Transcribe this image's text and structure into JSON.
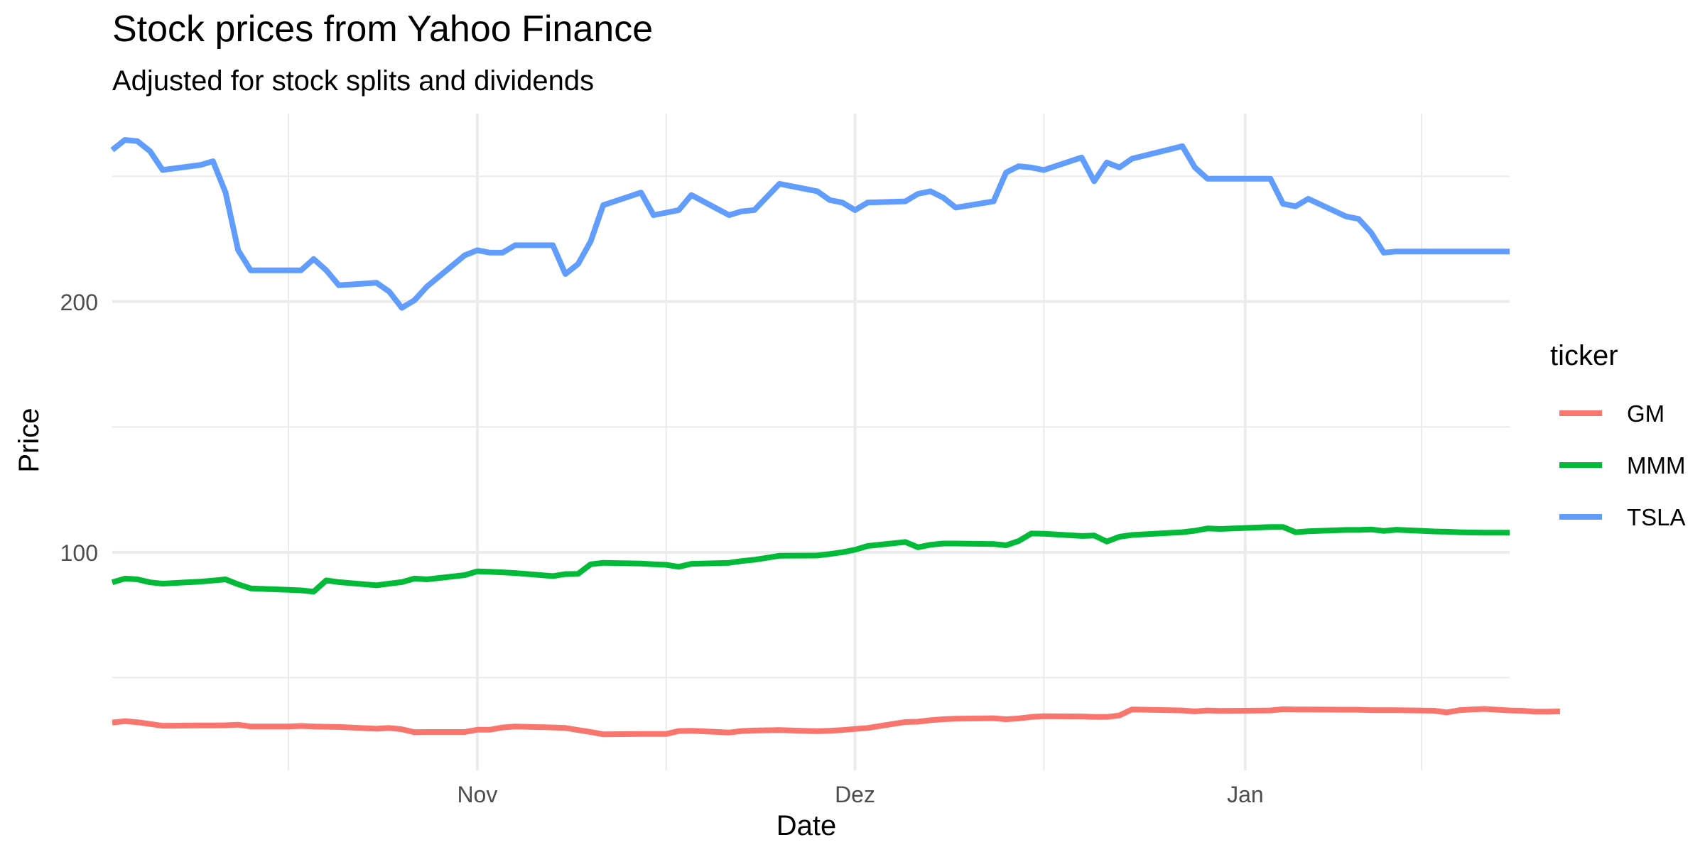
{
  "chart_data": {
    "type": "line",
    "title": "Stock prices from Yahoo Finance",
    "subtitle": "Adjusted for stock splits and dividends",
    "xlabel": "Date",
    "ylabel": "Price",
    "x_ticks": [
      {
        "date": "2022-11-01",
        "label": "Nov"
      },
      {
        "date": "2022-12-01",
        "label": "Dez"
      },
      {
        "date": "2023-01-01",
        "label": "Jan"
      }
    ],
    "y_ticks": [
      100,
      200
    ],
    "xlim": [
      "2022-10-03",
      "2023-01-22"
    ],
    "ylim": [
      13,
      275
    ],
    "grid": true,
    "legend": {
      "title": "ticker",
      "position": "right"
    },
    "series": [
      {
        "name": "GM",
        "color": "#F8766D",
        "points": [
          [
            "2022-10-03",
            32.1
          ],
          [
            "2022-10-04",
            32.6
          ],
          [
            "2022-10-05",
            32.2
          ],
          [
            "2022-10-06",
            31.5
          ],
          [
            "2022-10-07",
            30.8
          ],
          [
            "2022-10-10",
            30.9
          ],
          [
            "2022-10-11",
            30.9
          ],
          [
            "2022-10-12",
            31.0
          ],
          [
            "2022-10-13",
            31.2
          ],
          [
            "2022-10-14",
            30.5
          ],
          [
            "2022-10-17",
            30.5
          ],
          [
            "2022-10-18",
            30.7
          ],
          [
            "2022-10-19",
            30.5
          ],
          [
            "2022-10-20",
            30.4
          ],
          [
            "2022-10-21",
            30.3
          ],
          [
            "2022-10-24",
            29.6
          ],
          [
            "2022-10-25",
            29.9
          ],
          [
            "2022-10-26",
            29.4
          ],
          [
            "2022-10-27",
            28.2
          ],
          [
            "2022-10-28",
            28.3
          ],
          [
            "2022-10-31",
            28.3
          ],
          [
            "2022-11-01",
            29.2
          ],
          [
            "2022-11-02",
            29.2
          ],
          [
            "2022-11-03",
            30.1
          ],
          [
            "2022-11-04",
            30.5
          ],
          [
            "2022-11-07",
            30.1
          ],
          [
            "2022-11-08",
            29.9
          ],
          [
            "2022-11-09",
            29.1
          ],
          [
            "2022-11-10",
            28.3
          ],
          [
            "2022-11-11",
            27.4
          ],
          [
            "2022-11-14",
            27.5
          ],
          [
            "2022-11-15",
            27.5
          ],
          [
            "2022-11-16",
            27.5
          ],
          [
            "2022-11-17",
            28.7
          ],
          [
            "2022-11-18",
            28.8
          ],
          [
            "2022-11-21",
            28.1
          ],
          [
            "2022-11-22",
            28.7
          ],
          [
            "2022-11-23",
            28.9
          ],
          [
            "2022-11-25",
            29.1
          ],
          [
            "2022-11-28",
            28.6
          ],
          [
            "2022-11-29",
            28.8
          ],
          [
            "2022-11-30",
            29.1
          ],
          [
            "2022-12-01",
            29.5
          ],
          [
            "2022-12-02",
            29.9
          ],
          [
            "2022-12-05",
            32.3
          ],
          [
            "2022-12-06",
            32.4
          ],
          [
            "2022-12-07",
            33.0
          ],
          [
            "2022-12-08",
            33.4
          ],
          [
            "2022-12-09",
            33.6
          ],
          [
            "2022-12-12",
            33.8
          ],
          [
            "2022-12-13",
            33.4
          ],
          [
            "2022-12-14",
            33.7
          ],
          [
            "2022-12-15",
            34.3
          ],
          [
            "2022-12-16",
            34.6
          ],
          [
            "2022-12-19",
            34.5
          ],
          [
            "2022-12-20",
            34.3
          ],
          [
            "2022-12-21",
            34.3
          ],
          [
            "2022-12-22",
            34.9
          ],
          [
            "2022-12-23",
            37.3
          ],
          [
            "2022-12-27",
            36.9
          ],
          [
            "2022-12-28",
            36.5
          ],
          [
            "2022-12-29",
            36.9
          ],
          [
            "2022-12-30",
            36.7
          ],
          [
            "2023-01-03",
            36.9
          ],
          [
            "2023-01-04",
            37.4
          ],
          [
            "2023-01-05",
            37.3
          ],
          [
            "2023-01-06",
            37.3
          ],
          [
            "2023-01-09",
            37.2
          ],
          [
            "2023-01-10",
            37.2
          ],
          [
            "2023-01-11",
            37.0
          ],
          [
            "2023-01-12",
            37.0
          ],
          [
            "2023-01-13",
            37.0
          ],
          [
            "2023-01-16",
            36.8
          ],
          [
            "2023-01-17",
            36.1
          ],
          [
            "2023-01-18",
            37.0
          ],
          [
            "2023-01-19",
            37.3
          ],
          [
            "2023-01-20",
            37.5
          ],
          [
            "2023-01-21",
            37.2
          ],
          [
            "2023-01-22",
            36.9
          ],
          [
            "2023-01-23",
            36.8
          ],
          [
            "2023-01-24",
            36.4
          ],
          [
            "2023-01-25",
            36.4
          ],
          [
            "2023-01-26",
            36.5
          ]
        ]
      },
      {
        "name": "MMM",
        "color": "#00BA38",
        "points": [
          [
            "2022-10-03",
            88.0
          ],
          [
            "2022-10-04",
            89.5
          ],
          [
            "2022-10-05",
            89.2
          ],
          [
            "2022-10-06",
            88.0
          ],
          [
            "2022-10-07",
            87.5
          ],
          [
            "2022-10-10",
            88.3
          ],
          [
            "2022-10-11",
            88.7
          ],
          [
            "2022-10-12",
            89.2
          ],
          [
            "2022-10-13",
            87.2
          ],
          [
            "2022-10-14",
            85.6
          ],
          [
            "2022-10-17",
            85.0
          ],
          [
            "2022-10-18",
            84.8
          ],
          [
            "2022-10-19",
            84.3
          ],
          [
            "2022-10-20",
            88.8
          ],
          [
            "2022-10-21",
            88.1
          ],
          [
            "2022-10-24",
            86.8
          ],
          [
            "2022-10-25",
            87.5
          ],
          [
            "2022-10-26",
            88.1
          ],
          [
            "2022-10-27",
            89.5
          ],
          [
            "2022-10-28",
            89.2
          ],
          [
            "2022-10-31",
            90.9
          ],
          [
            "2022-11-01",
            92.4
          ],
          [
            "2022-11-02",
            92.2
          ],
          [
            "2022-11-03",
            92.0
          ],
          [
            "2022-11-04",
            91.7
          ],
          [
            "2022-11-07",
            90.5
          ],
          [
            "2022-11-08",
            91.3
          ],
          [
            "2022-11-09",
            91.4
          ],
          [
            "2022-11-10",
            95.2
          ],
          [
            "2022-11-11",
            95.8
          ],
          [
            "2022-11-14",
            95.5
          ],
          [
            "2022-11-15",
            95.2
          ],
          [
            "2022-11-16",
            95.0
          ],
          [
            "2022-11-17",
            94.2
          ],
          [
            "2022-11-18",
            95.4
          ],
          [
            "2022-11-21",
            95.8
          ],
          [
            "2022-11-22",
            96.5
          ],
          [
            "2022-11-23",
            97.0
          ],
          [
            "2022-11-25",
            98.6
          ],
          [
            "2022-11-28",
            98.7
          ],
          [
            "2022-11-29",
            99.3
          ],
          [
            "2022-11-30",
            100.0
          ],
          [
            "2022-12-01",
            101.0
          ],
          [
            "2022-12-02",
            102.5
          ],
          [
            "2022-12-05",
            104.1
          ],
          [
            "2022-12-06",
            102.0
          ],
          [
            "2022-12-07",
            103.0
          ],
          [
            "2022-12-08",
            103.5
          ],
          [
            "2022-12-09",
            103.5
          ],
          [
            "2022-12-12",
            103.3
          ],
          [
            "2022-12-13",
            102.8
          ],
          [
            "2022-12-14",
            104.5
          ],
          [
            "2022-12-15",
            107.5
          ],
          [
            "2022-12-16",
            107.4
          ],
          [
            "2022-12-19",
            106.5
          ],
          [
            "2022-12-20",
            106.7
          ],
          [
            "2022-12-21",
            104.3
          ],
          [
            "2022-12-22",
            106.2
          ],
          [
            "2022-12-23",
            106.9
          ],
          [
            "2022-12-27",
            108.0
          ],
          [
            "2022-12-28",
            108.6
          ],
          [
            "2022-12-29",
            109.5
          ],
          [
            "2022-12-30",
            109.3
          ],
          [
            "2023-01-03",
            110.1
          ],
          [
            "2023-01-04",
            110.1
          ],
          [
            "2023-01-05",
            108.0
          ],
          [
            "2023-01-06",
            108.4
          ],
          [
            "2023-01-09",
            108.9
          ],
          [
            "2023-01-10",
            108.9
          ],
          [
            "2023-01-11",
            109.1
          ],
          [
            "2023-01-12",
            108.5
          ],
          [
            "2023-01-13",
            109.0
          ],
          [
            "2023-01-16",
            108.3
          ],
          [
            "2023-01-17",
            108.2
          ],
          [
            "2023-01-18",
            108.0
          ],
          [
            "2023-01-19",
            107.9
          ],
          [
            "2023-01-20",
            107.8
          ],
          [
            "2023-01-21",
            107.8
          ],
          [
            "2023-01-22",
            107.8
          ]
        ]
      },
      {
        "name": "TSLA",
        "color": "#619CFF",
        "points": [
          [
            "2022-10-03",
            260.5
          ],
          [
            "2022-10-04",
            264.5
          ],
          [
            "2022-10-05",
            264.0
          ],
          [
            "2022-10-06",
            260.0
          ],
          [
            "2022-10-07",
            252.5
          ],
          [
            "2022-10-10",
            254.5
          ],
          [
            "2022-10-11",
            256.0
          ],
          [
            "2022-10-12",
            243.5
          ],
          [
            "2022-10-13",
            220.5
          ],
          [
            "2022-10-14",
            212.5
          ],
          [
            "2022-10-17",
            212.5
          ],
          [
            "2022-10-18",
            212.5
          ],
          [
            "2022-10-19",
            217.0
          ],
          [
            "2022-10-20",
            212.5
          ],
          [
            "2022-10-21",
            206.5
          ],
          [
            "2022-10-24",
            207.5
          ],
          [
            "2022-10-25",
            204.0
          ],
          [
            "2022-10-26",
            197.5
          ],
          [
            "2022-10-27",
            200.5
          ],
          [
            "2022-10-28",
            206.0
          ],
          [
            "2022-10-31",
            218.5
          ],
          [
            "2022-11-01",
            220.5
          ],
          [
            "2022-11-02",
            219.5
          ],
          [
            "2022-11-03",
            219.5
          ],
          [
            "2022-11-04",
            222.5
          ],
          [
            "2022-11-07",
            222.5
          ],
          [
            "2022-11-08",
            211.0
          ],
          [
            "2022-11-09",
            215.0
          ],
          [
            "2022-11-10",
            224.0
          ],
          [
            "2022-11-11",
            238.5
          ],
          [
            "2022-11-14",
            243.5
          ],
          [
            "2022-11-15",
            234.5
          ],
          [
            "2022-11-16",
            235.5
          ],
          [
            "2022-11-17",
            236.5
          ],
          [
            "2022-11-18",
            242.5
          ],
          [
            "2022-11-21",
            234.5
          ],
          [
            "2022-11-22",
            236.0
          ],
          [
            "2022-11-23",
            236.5
          ],
          [
            "2022-11-25",
            247.0
          ],
          [
            "2022-11-28",
            244.0
          ],
          [
            "2022-11-29",
            240.5
          ],
          [
            "2022-11-30",
            239.5
          ],
          [
            "2022-12-01",
            236.5
          ],
          [
            "2022-12-02",
            239.5
          ],
          [
            "2022-12-05",
            240.0
          ],
          [
            "2022-12-06",
            243.0
          ],
          [
            "2022-12-07",
            244.0
          ],
          [
            "2022-12-08",
            241.5
          ],
          [
            "2022-12-09",
            237.5
          ],
          [
            "2022-12-12",
            240.0
          ],
          [
            "2022-12-13",
            251.5
          ],
          [
            "2022-12-14",
            254.0
          ],
          [
            "2022-12-15",
            253.5
          ],
          [
            "2022-12-16",
            252.5
          ],
          [
            "2022-12-19",
            257.5
          ],
          [
            "2022-12-20",
            248.0
          ],
          [
            "2022-12-21",
            255.5
          ],
          [
            "2022-12-22",
            253.5
          ],
          [
            "2022-12-23",
            257.0
          ],
          [
            "2022-12-27",
            262.0
          ],
          [
            "2022-12-28",
            253.5
          ],
          [
            "2022-12-29",
            249.0
          ],
          [
            "2022-12-30",
            249.0
          ],
          [
            "2023-01-03",
            249.0
          ],
          [
            "2023-01-04",
            239.0
          ],
          [
            "2023-01-05",
            238.0
          ],
          [
            "2023-01-06",
            241.0
          ],
          [
            "2023-01-09",
            234.0
          ],
          [
            "2023-01-10",
            233.0
          ],
          [
            "2023-01-11",
            227.5
          ],
          [
            "2023-01-12",
            219.5
          ],
          [
            "2023-01-13",
            220.0
          ],
          [
            "2023-01-16",
            220.0
          ],
          [
            "2023-01-17",
            220.0
          ],
          [
            "2023-01-18",
            220.0
          ],
          [
            "2023-01-19",
            220.0
          ],
          [
            "2023-01-20",
            220.0
          ],
          [
            "2023-01-21",
            220.0
          ],
          [
            "2023-01-22",
            220.0
          ]
        ]
      }
    ]
  }
}
